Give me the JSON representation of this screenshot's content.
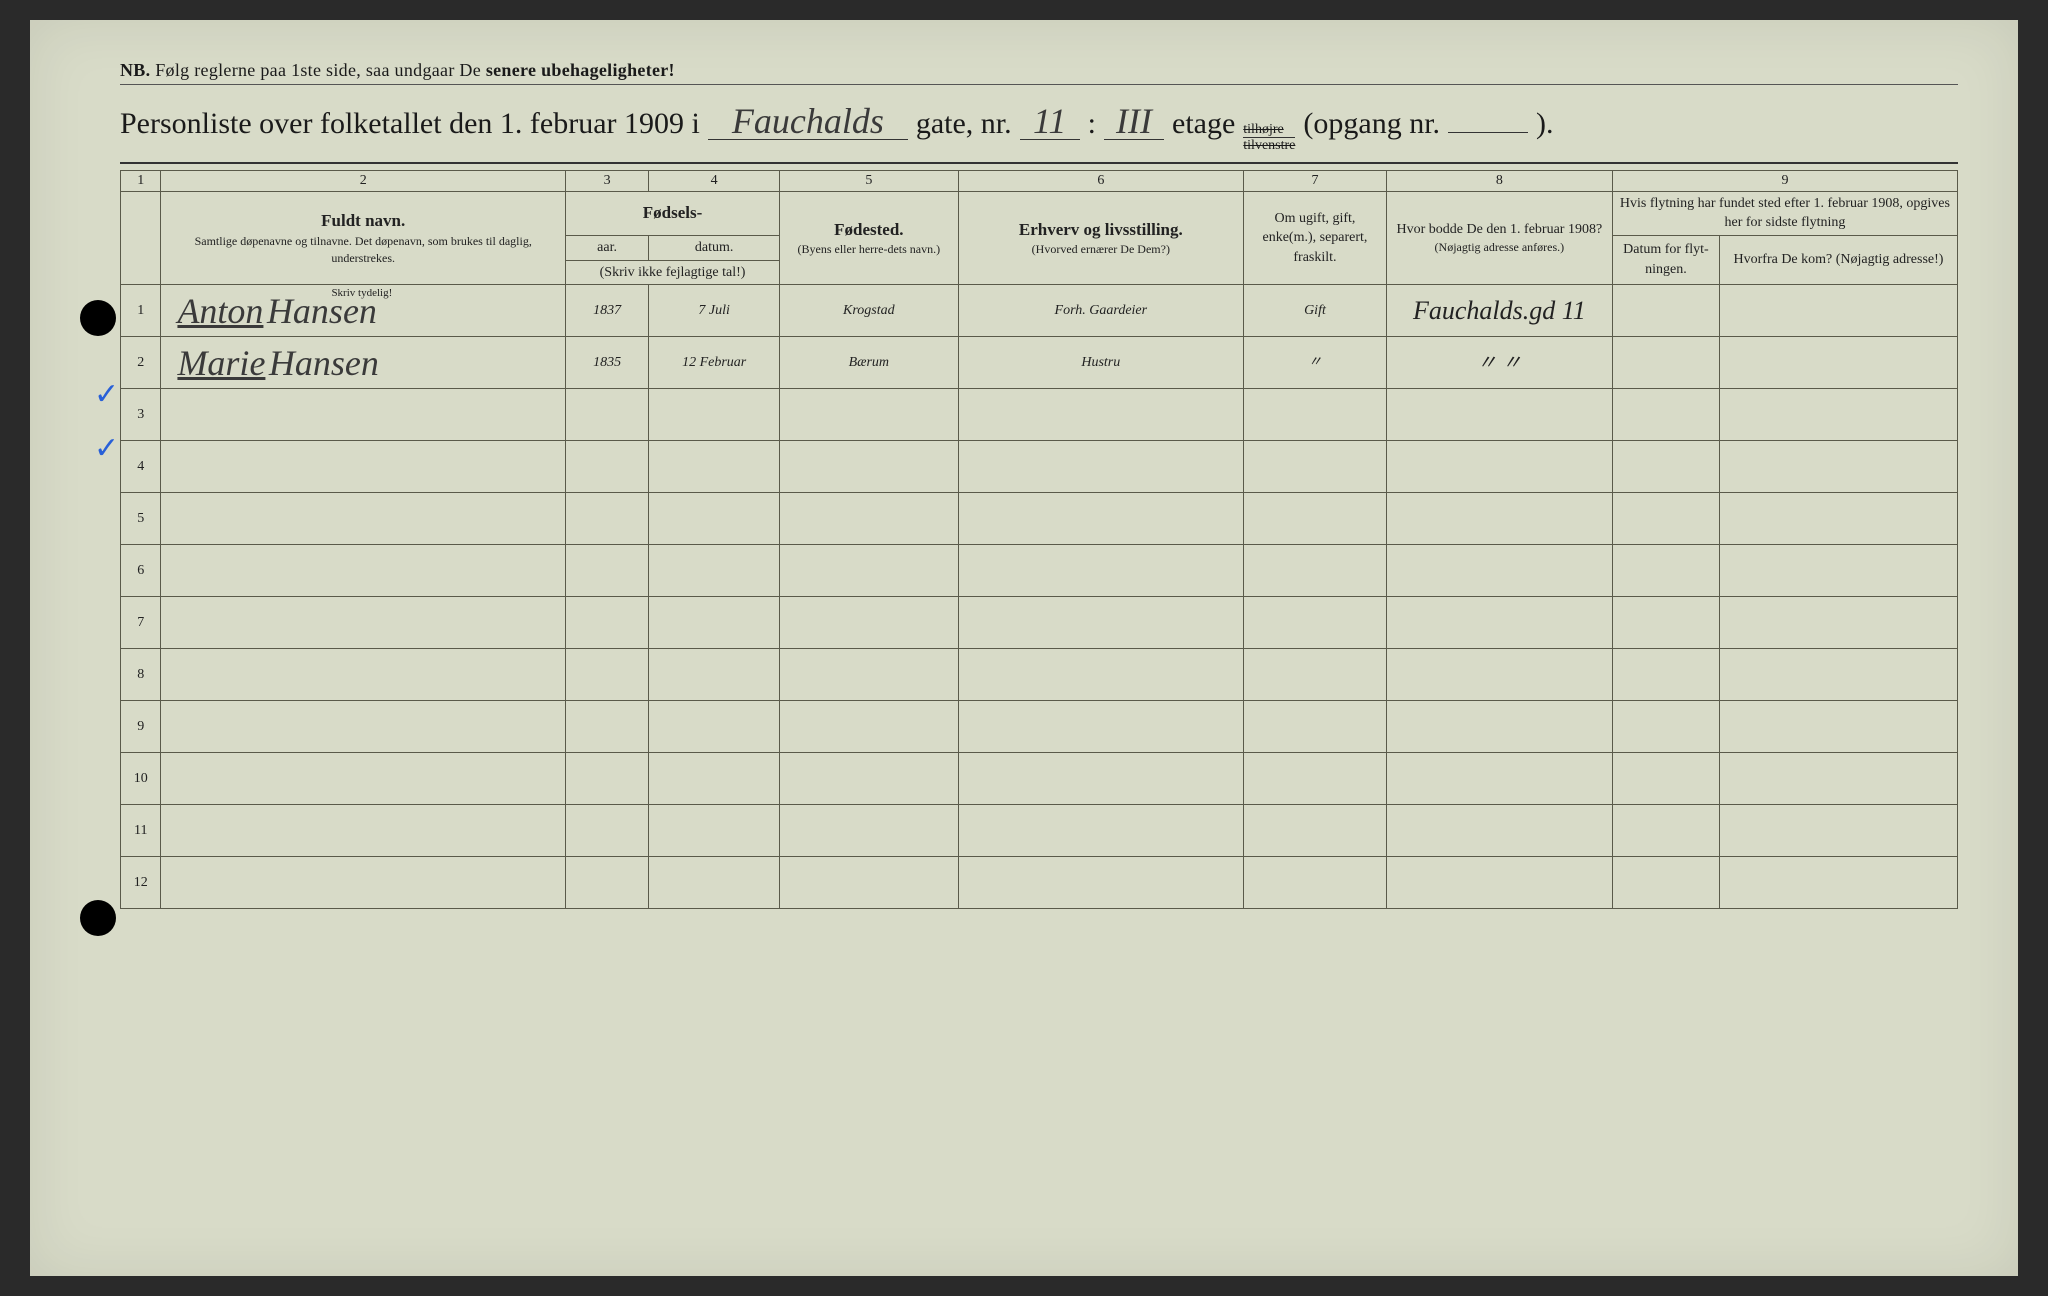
{
  "page": {
    "background_color": "#d8dbc8",
    "ink_color": "#1a1a1a",
    "handwriting_color": "#3a3a3a",
    "checkmark_color": "#2860d8",
    "border_color": "#5a5a4a"
  },
  "nb_line": {
    "prefix": "NB.",
    "text": "Følg reglerne paa 1ste side, saa undgaar De",
    "bold_tail": "senere ubehageligheter!"
  },
  "title": {
    "prefix": "Personliste over folketallet den 1. februar 1909 i",
    "street_hand": "Fauchalds",
    "gate_label": "gate, nr.",
    "number_hand": "11",
    "colon": ":",
    "floor_hand": "III",
    "etage_label": "etage",
    "fraction_top": "tilhøjre",
    "fraction_bot": "tilvenstre",
    "opgang_label": "(opgang nr.",
    "opgang_val": "",
    "close": ")."
  },
  "col_numbers": [
    "1",
    "2",
    "3",
    "4",
    "5",
    "6",
    "7",
    "8",
    "9"
  ],
  "headers": {
    "col2_main": "Fuldt navn.",
    "col2_sub": "Samtlige døpenavne og tilnavne. Det døpenavn, som brukes til daglig, understrekes.",
    "col34_group": "Fødsels-",
    "col3": "aar.",
    "col4": "datum.",
    "col34_note": "(Skriv ikke fejlagtige tal!)",
    "col5_main": "Fødested.",
    "col5_sub": "(Byens eller herre-dets navn.)",
    "col6_main": "Erhverv og livsstilling.",
    "col6_sub": "(Hvorved ernærer De Dem?)",
    "col7": "Om ugift, gift, enke(m.), separert, fraskilt.",
    "col8_main": "Hvor bodde De den 1. februar 1908?",
    "col8_sub": "(Nøjagtig adresse anføres.)",
    "col9_top": "Hvis flytning har fundet sted efter 1. februar 1908, opgives her for sidste flytning",
    "col9a": "Datum for flyt-ningen.",
    "col9b": "Hvorfra De kom? (Nøjagtig adresse!)"
  },
  "row1_note": "Skriv tydelig!",
  "rows": [
    {
      "n": "1",
      "check": "✓",
      "first": "Anton",
      "last": "Hansen",
      "year": "1837",
      "date": "7 Juli",
      "birthplace": "Krogstad",
      "occupation": "Forh. Gaardeier",
      "marital": "Gift",
      "addr1908": "Fauchalds.gd 11",
      "moved_date": "",
      "moved_from": ""
    },
    {
      "n": "2",
      "check": "✓",
      "first": "Marie",
      "last": "Hansen",
      "year": "1835",
      "date": "12 Februar",
      "birthplace": "Bærum",
      "occupation": "Hustru",
      "marital": "〃",
      "addr1908": "〃        〃",
      "moved_date": "",
      "moved_from": ""
    }
  ],
  "empty_rows": [
    "3",
    "4",
    "5",
    "6",
    "7",
    "8",
    "9",
    "10",
    "11",
    "12"
  ]
}
